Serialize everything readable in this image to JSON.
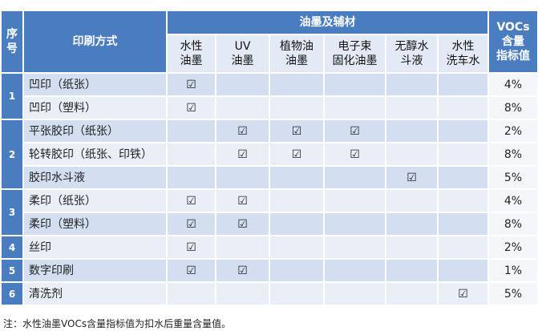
{
  "header": {
    "seq": "序号",
    "method": "印刷方式",
    "materials": "油墨及辅材",
    "columns": [
      "水性\n油墨",
      "UV\n油墨",
      "植物油\n油墨",
      "电子束\n固化油墨",
      "无醇水\n斗液",
      "水性\n洗车水"
    ],
    "voc": "VOCs\n含量\n指标值"
  },
  "groups": [
    {
      "number": "1",
      "rows": [
        {
          "method": "凹印（纸张）",
          "checks": [
            "☑",
            null,
            null,
            null,
            null,
            null
          ],
          "voc": "4%"
        },
        {
          "method": "凹印（塑料）",
          "checks": [
            "☑",
            null,
            null,
            null,
            null,
            null
          ],
          "voc": "8%"
        }
      ]
    },
    {
      "number": "2",
      "rows": [
        {
          "method": "平张胶印（纸张）",
          "checks": [
            null,
            "☑",
            "☑",
            "☑",
            null,
            null
          ],
          "voc": "2%"
        },
        {
          "method": "轮转胶印（纸张、印铁）",
          "checks": [
            null,
            "☑",
            "☑",
            "☑",
            null,
            null
          ],
          "voc": "8%"
        },
        {
          "method": "胶印水斗液",
          "checks": [
            null,
            null,
            null,
            null,
            "☑",
            null
          ],
          "voc": "5%"
        }
      ]
    },
    {
      "number": "3",
      "rows": [
        {
          "method": "柔印（纸张）",
          "checks": [
            "☑",
            "☑",
            null,
            null,
            null,
            null
          ],
          "voc": "4%"
        },
        {
          "method": "柔印（塑料）",
          "checks": [
            "☑",
            "☑",
            null,
            null,
            null,
            null
          ],
          "voc": "8%"
        }
      ]
    },
    {
      "number": "4",
      "rows": [
        {
          "method": "丝印",
          "checks": [
            "☑",
            null,
            null,
            null,
            null,
            null
          ],
          "voc": "2%"
        }
      ]
    },
    {
      "number": "5",
      "rows": [
        {
          "method": "数字印刷",
          "checks": [
            "☑",
            "☑",
            null,
            null,
            null,
            null
          ],
          "voc": "1%"
        }
      ]
    },
    {
      "number": "6",
      "rows": [
        {
          "method": "清洗剂",
          "checks": [
            null,
            null,
            null,
            null,
            null,
            "☑"
          ],
          "voc": "5%"
        }
      ]
    }
  ],
  "note": "注：水性油墨VOCs含量指标值为扣水后重量含量值。"
}
